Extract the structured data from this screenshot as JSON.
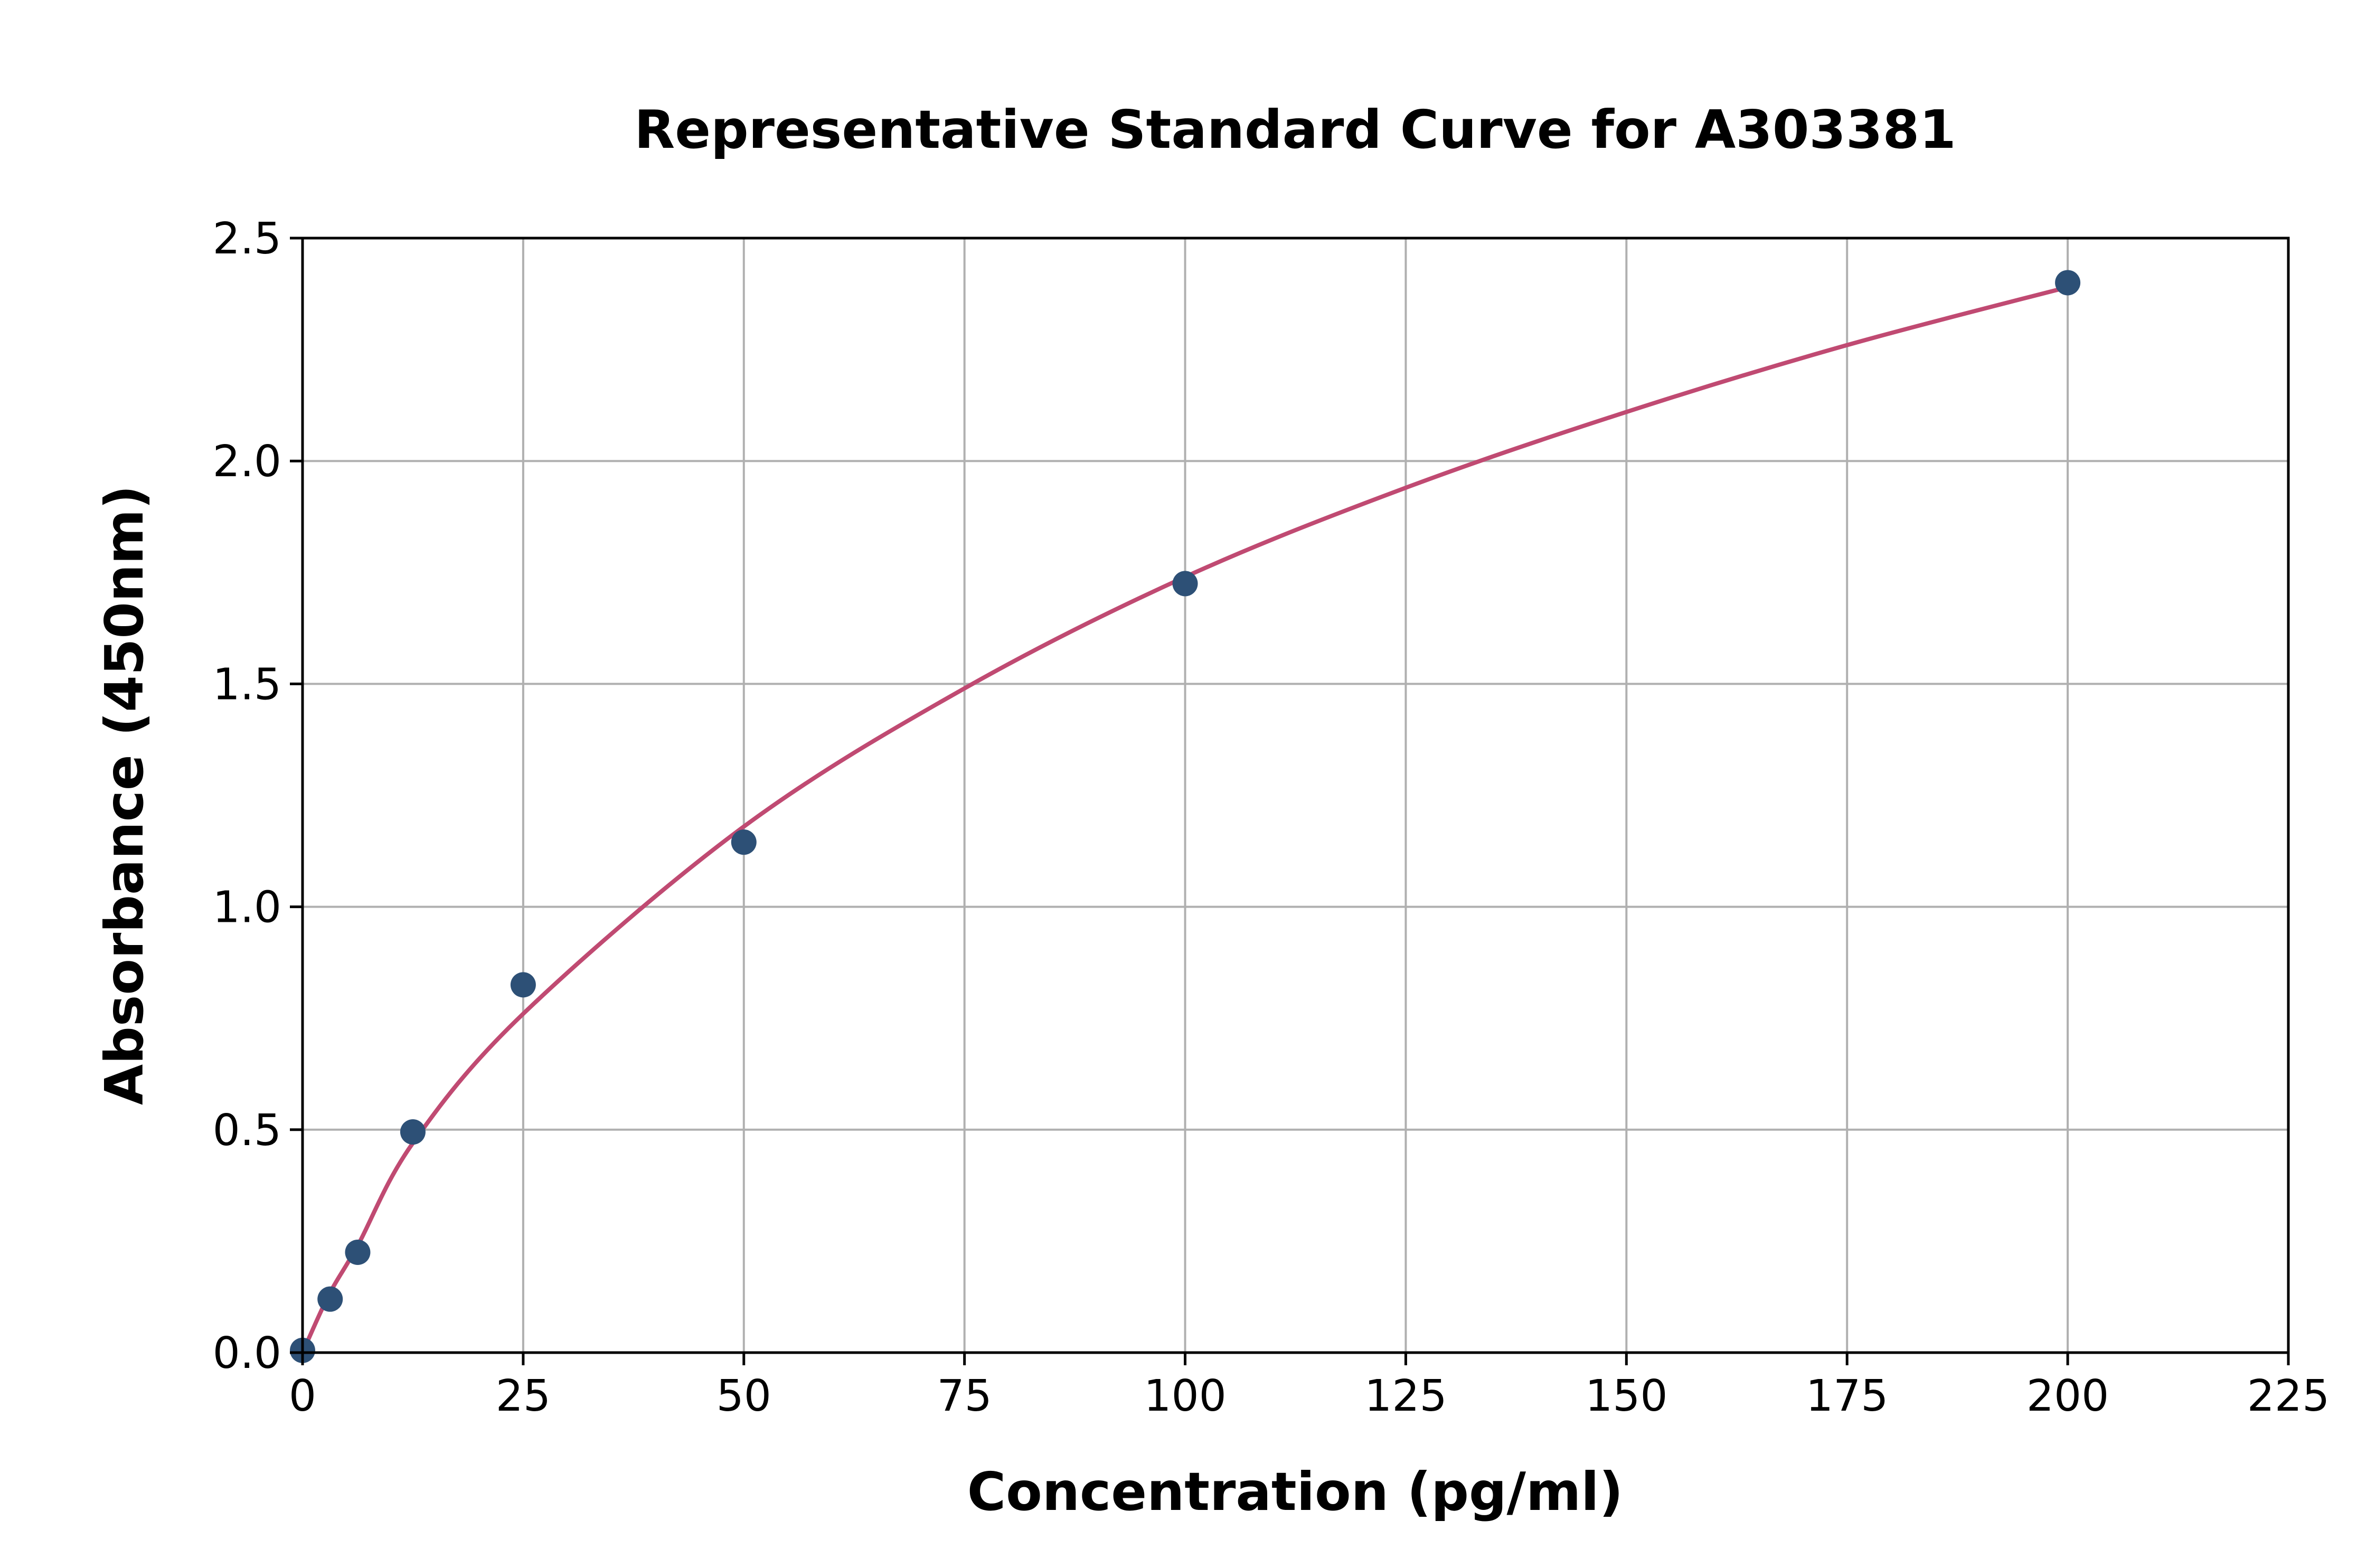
{
  "chart_data": {
    "type": "scatter",
    "title": "Representative Standard Curve for A303381",
    "xlabel": "Concentration (pg/ml)",
    "ylabel": "Absorbance (450nm)",
    "xlim": [
      0,
      225
    ],
    "ylim": [
      0,
      2.5
    ],
    "xticks": [
      "0",
      "25",
      "50",
      "75",
      "100",
      "125",
      "150",
      "175",
      "200",
      "225"
    ],
    "yticks": [
      "0.0",
      "0.5",
      "1.0",
      "1.5",
      "2.0",
      "2.5"
    ],
    "grid": true,
    "points": {
      "x": [
        0,
        3.125,
        6.25,
        12.5,
        25,
        50,
        100,
        200
      ],
      "y": [
        0.005,
        0.12,
        0.225,
        0.495,
        0.825,
        1.145,
        1.725,
        2.4
      ]
    },
    "fit_curve": {
      "x": [
        0,
        3,
        6.25,
        12.5,
        25,
        50,
        75,
        100,
        125,
        150,
        175,
        200
      ],
      "y": [
        0,
        0.13,
        0.24,
        0.47,
        0.76,
        1.18,
        1.49,
        1.74,
        1.94,
        2.11,
        2.26,
        2.39
      ]
    },
    "colors": {
      "points": "#2d5076",
      "curve": "#c04a72",
      "grid": "#b0b0b0"
    }
  }
}
